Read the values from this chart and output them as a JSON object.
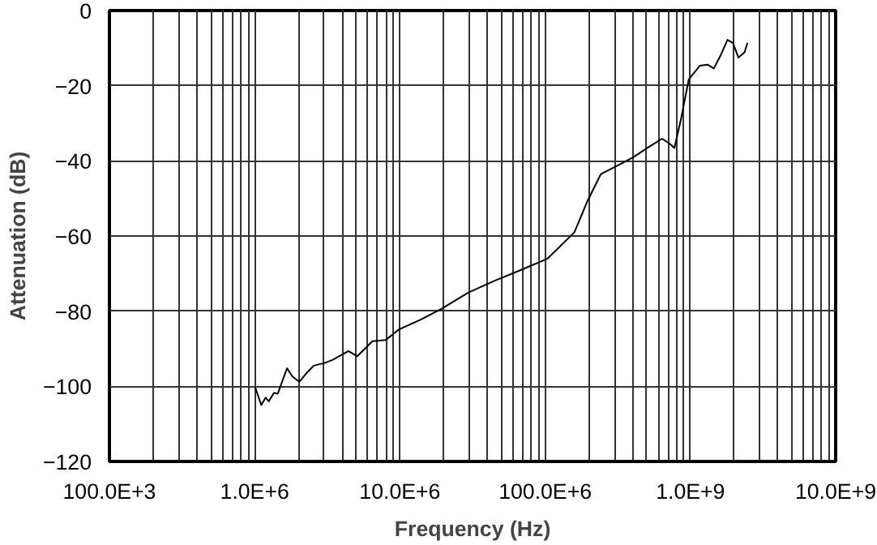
{
  "chart_data": {
    "type": "line",
    "xlabel": "Frequency (Hz)",
    "ylabel": "Attenuation (dB)",
    "log": "x",
    "grid": true,
    "line_style": "solid",
    "xlim": [
      100000,
      10000000000
    ],
    "ylim": [
      -120,
      0
    ],
    "xticks": [
      {
        "value": 100000,
        "label": "100.0E+3"
      },
      {
        "value": 1000000,
        "label": "1.0E+6"
      },
      {
        "value": 10000000,
        "label": "10.0E+6"
      },
      {
        "value": 100000000,
        "label": "100.0E+6"
      },
      {
        "value": 1000000000,
        "label": "1.0E+9"
      },
      {
        "value": 10000000000,
        "label": "10.0E+9"
      }
    ],
    "yticks": [
      {
        "value": -120,
        "label": "−120"
      },
      {
        "value": -100,
        "label": "−100"
      },
      {
        "value": -80,
        "label": "−80"
      },
      {
        "value": -60,
        "label": "−60"
      },
      {
        "value": -40,
        "label": "−40"
      },
      {
        "value": -20,
        "label": "−20"
      },
      0
    ],
    "series": [
      {
        "color": "#000000",
        "x": [
          1010000,
          1110000,
          1190000,
          1250000,
          1360000,
          1440000,
          1670000,
          1820000,
          2030000,
          2250000,
          2550000,
          3020000,
          3430000,
          4420000,
          5090000,
          6460000,
          7960000,
          9820000,
          13800000,
          19300000,
          29500000,
          44900000,
          68400000,
          104000000,
          159000000,
          196000000,
          242000000,
          313000000,
          402000000,
          518000000,
          638000000,
          724000000,
          776000000,
          859000000,
          975000000,
          1160000000,
          1310000000,
          1450000000,
          1620000000,
          1800000000,
          1960000000,
          2140000000,
          2360000000,
          2470000000
        ],
        "values": [
          -100.3,
          -105,
          -103,
          -104,
          -101.7,
          -102,
          -95.2,
          -97.4,
          -98.8,
          -96.7,
          -94.5,
          -93.8,
          -93,
          -90.6,
          -92,
          -88,
          -87.7,
          -84.9,
          -82.3,
          -79.4,
          -75.1,
          -71.9,
          -69,
          -66,
          -59,
          -50.6,
          -43.5,
          -41.3,
          -39.1,
          -36.3,
          -34.1,
          -35.5,
          -36.6,
          -29.1,
          -18.3,
          -14.7,
          -14.4,
          -15.4,
          -11.8,
          -7.8,
          -8.6,
          -12.5,
          -11.1,
          -8.6
        ]
      }
    ]
  }
}
